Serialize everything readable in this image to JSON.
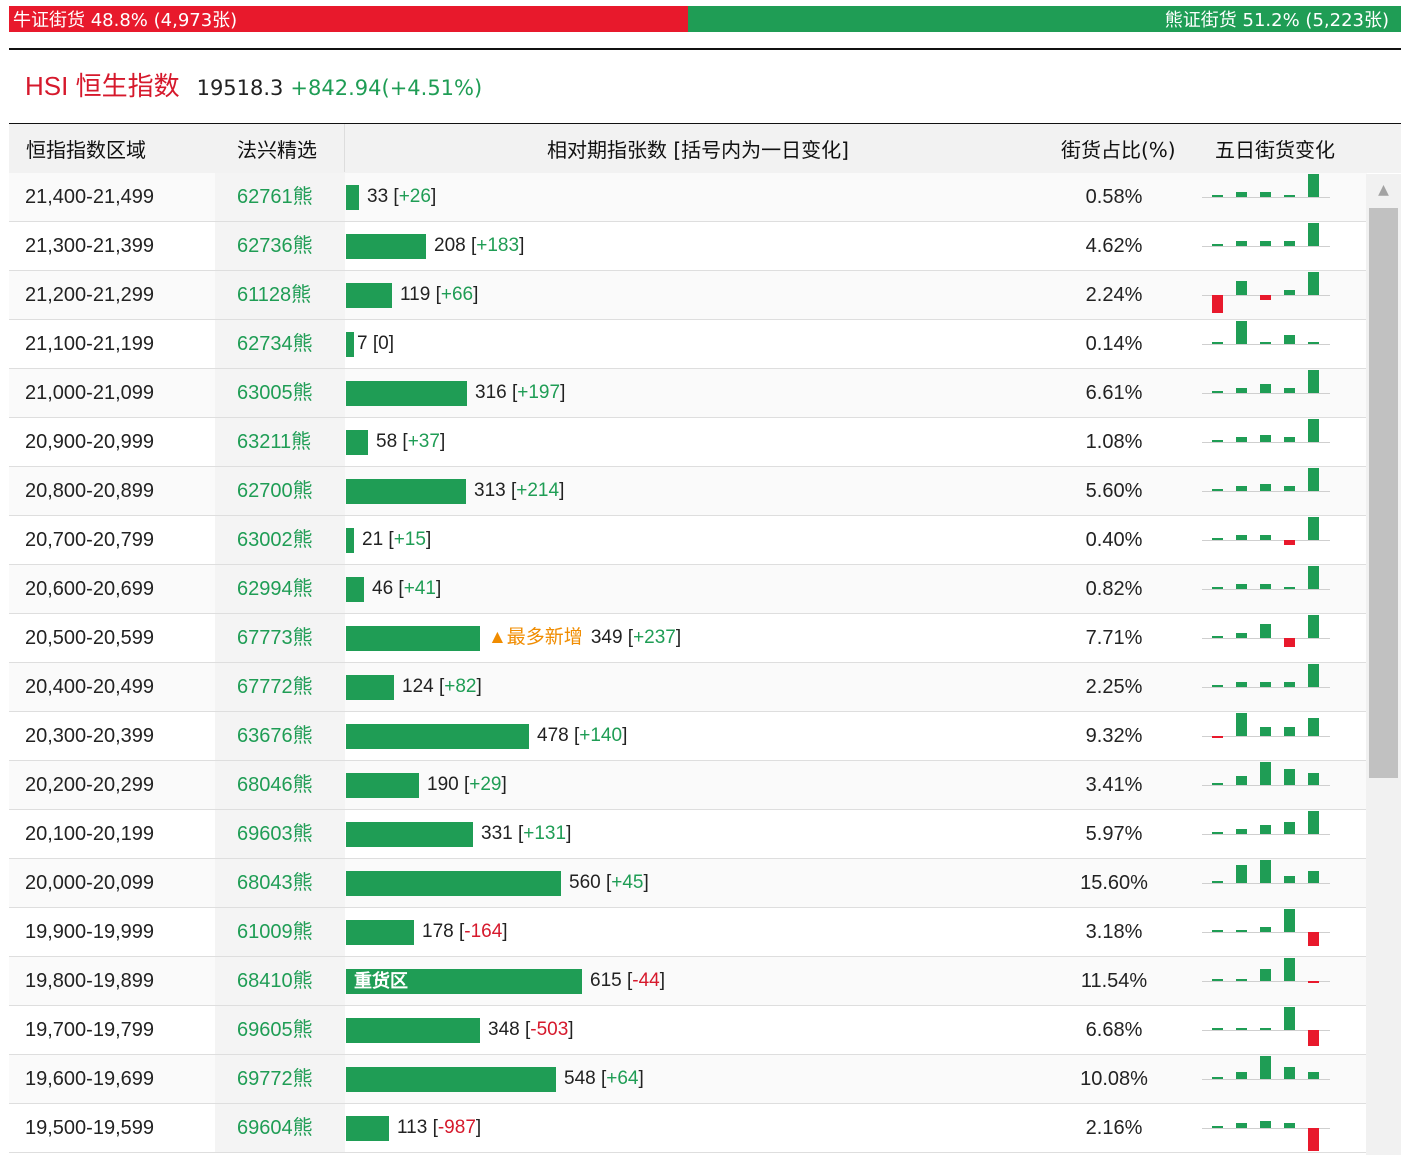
{
  "ratio": {
    "bull_label": "牛证街货 48.8% (4,973张)",
    "bull_fraction": 0.488,
    "bear_label": "熊证街货 51.2% (5,223张)",
    "colors": {
      "bull": "#e8192c",
      "bear": "#1f9d55"
    }
  },
  "index": {
    "name": "HSI 恒生指数",
    "price": "19518.3",
    "change": "+842.94(+4.51%)"
  },
  "table": {
    "headers": {
      "range": "恒指指数区域",
      "pick": "法兴精选",
      "bars": "相对期指张数 [括号内为一日变化]",
      "pct": "街货占比(%)",
      "five": "五日街货变化"
    },
    "max_value": 615,
    "rows": [
      {
        "range": "21,400-21,499",
        "pick": "62761熊",
        "value": 33,
        "value_text": "33",
        "change": "+26",
        "pct": "0.58%",
        "five": [
          0,
          1,
          1,
          0,
          5
        ]
      },
      {
        "range": "21,300-21,399",
        "pick": "62736熊",
        "value": 208,
        "value_text": "208",
        "change": "+183",
        "pct": "4.62%",
        "five": [
          0,
          1,
          1,
          1,
          5
        ]
      },
      {
        "range": "21,200-21,299",
        "pick": "61128熊",
        "value": 119,
        "value_text": "119",
        "change": "+66",
        "pct": "2.24%",
        "five": [
          -4,
          3,
          -1,
          1,
          5
        ]
      },
      {
        "range": "21,100-21,199",
        "pick": "62734熊",
        "value": 7,
        "value_text": "7",
        "change": "0",
        "pct": "0.14%",
        "five": [
          0,
          5,
          0,
          2,
          0
        ]
      },
      {
        "range": "21,000-21,099",
        "pick": "63005熊",
        "value": 316,
        "value_text": "316",
        "change": "+197",
        "pct": "6.61%",
        "five": [
          0,
          1,
          2,
          1,
          5
        ]
      },
      {
        "range": "20,900-20,999",
        "pick": "63211熊",
        "value": 58,
        "value_text": "58",
        "change": "+37",
        "pct": "1.08%",
        "five": [
          0,
          1,
          1.5,
          1,
          5
        ]
      },
      {
        "range": "20,800-20,899",
        "pick": "62700熊",
        "value": 313,
        "value_text": "313",
        "change": "+214",
        "pct": "5.60%",
        "five": [
          0,
          1,
          1.5,
          1,
          5
        ]
      },
      {
        "range": "20,700-20,799",
        "pick": "63002熊",
        "value": 21,
        "value_text": "21",
        "change": "+15",
        "pct": "0.40%",
        "five": [
          0,
          1,
          1,
          -1,
          5
        ]
      },
      {
        "range": "20,600-20,699",
        "pick": "62994熊",
        "value": 46,
        "value_text": "46",
        "change": "+41",
        "pct": "0.82%",
        "five": [
          0,
          1,
          1,
          0,
          5
        ]
      },
      {
        "range": "20,500-20,599",
        "pick": "67773熊",
        "value": 349,
        "value_text": "349",
        "change": "+237",
        "pct": "7.71%",
        "five": [
          0,
          1,
          3,
          -2,
          5
        ],
        "tag": "▲最多新增"
      },
      {
        "range": "20,400-20,499",
        "pick": "67772熊",
        "value": 124,
        "value_text": "124",
        "change": "+82",
        "pct": "2.25%",
        "five": [
          0,
          1,
          1,
          1,
          5
        ]
      },
      {
        "range": "20,300-20,399",
        "pick": "63676熊",
        "value": 478,
        "value_text": "478",
        "change": "+140",
        "pct": "9.32%",
        "five": [
          -0.5,
          5,
          2,
          2,
          4
        ]
      },
      {
        "range": "20,200-20,299",
        "pick": "68046熊",
        "value": 190,
        "value_text": "190",
        "change": "+29",
        "pct": "3.41%",
        "five": [
          0,
          2,
          5,
          3.5,
          2.5
        ]
      },
      {
        "range": "20,100-20,199",
        "pick": "69603熊",
        "value": 331,
        "value_text": "331",
        "change": "+131",
        "pct": "5.97%",
        "five": [
          0,
          1,
          2,
          2.5,
          5
        ]
      },
      {
        "range": "20,000-20,099",
        "pick": "68043熊",
        "value": 560,
        "value_text": "560",
        "change": "+45",
        "pct": "15.60%",
        "five": [
          0,
          4,
          5,
          1.5,
          2.5
        ]
      },
      {
        "range": "19,900-19,999",
        "pick": "61009熊",
        "value": 178,
        "value_text": "178",
        "change": "-164",
        "pct": "3.18%",
        "five": [
          0,
          0.5,
          1,
          5,
          -3
        ]
      },
      {
        "range": "19,800-19,899",
        "pick": "68410熊",
        "value": 615,
        "value_text": "615",
        "change": "-44",
        "pct": "11.54%",
        "five": [
          0,
          0,
          2.5,
          5,
          -0.5
        ],
        "inner_label": "重货区"
      },
      {
        "range": "19,700-19,799",
        "pick": "69605熊",
        "value": 348,
        "value_text": "348",
        "change": "-503",
        "pct": "6.68%",
        "five": [
          0,
          0.5,
          0.5,
          5,
          -3.5
        ]
      },
      {
        "range": "19,600-19,699",
        "pick": "69772熊",
        "value": 548,
        "value_text": "548",
        "change": "+64",
        "pct": "10.08%",
        "five": [
          0,
          1.5,
          5,
          2.5,
          1.5
        ]
      },
      {
        "range": "19,500-19,599",
        "pick": "69604熊",
        "value": 113,
        "value_text": "113",
        "change": "-987",
        "pct": "2.16%",
        "five": [
          0,
          1,
          1.5,
          1,
          -5
        ]
      }
    ]
  },
  "scrollbar": {
    "up_icon": "triangle-up-icon",
    "thumb_fraction": 0.58
  }
}
